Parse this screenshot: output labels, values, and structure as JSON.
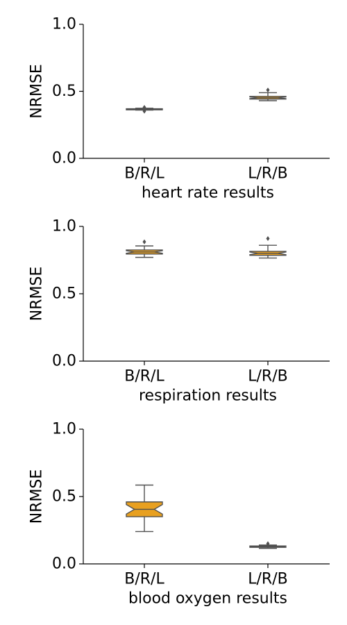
{
  "colors": {
    "box_fill": "#e8a020",
    "box_edge": "#505050",
    "axis": "#000000",
    "background": "#ffffff"
  },
  "chart_data": [
    {
      "type": "box",
      "xlabel": "heart rate results",
      "ylabel": "NRMSE",
      "ylim": [
        0,
        1.0
      ],
      "yticks": [
        "0.0",
        "0.5",
        "1.0"
      ],
      "categories": [
        "B/R/L",
        "L/R/B"
      ],
      "notched": true,
      "grid": false,
      "boxes": [
        {
          "category": "B/R/L",
          "whisker_low": 0.36,
          "q1": 0.362,
          "median": 0.366,
          "q3": 0.37,
          "whisker_high": 0.374,
          "outliers": [
            0.352,
            0.38
          ]
        },
        {
          "category": "L/R/B",
          "whisker_low": 0.43,
          "q1": 0.442,
          "median": 0.452,
          "q3": 0.462,
          "whisker_high": 0.49,
          "outliers": [
            0.51
          ]
        }
      ]
    },
    {
      "type": "box",
      "xlabel": "respiration results",
      "ylabel": "NRMSE",
      "ylim": [
        0,
        1.0
      ],
      "yticks": [
        "0.0",
        "0.5",
        "1.0"
      ],
      "categories": [
        "B/R/L",
        "L/R/B"
      ],
      "notched": true,
      "grid": false,
      "boxes": [
        {
          "category": "B/R/L",
          "whisker_low": 0.77,
          "q1": 0.795,
          "median": 0.81,
          "q3": 0.825,
          "whisker_high": 0.855,
          "outliers": [
            0.885
          ]
        },
        {
          "category": "L/R/B",
          "whisker_low": 0.765,
          "q1": 0.785,
          "median": 0.8,
          "q3": 0.815,
          "whisker_high": 0.86,
          "outliers": [
            0.91
          ]
        }
      ]
    },
    {
      "type": "box",
      "xlabel": "blood oxygen results",
      "ylabel": "NRMSE",
      "ylim": [
        0,
        1.0
      ],
      "yticks": [
        "0.0",
        "0.5",
        "1.0"
      ],
      "categories": [
        "B/R/L",
        "L/R/B"
      ],
      "notched": true,
      "grid": false,
      "boxes": [
        {
          "category": "B/R/L",
          "whisker_low": 0.24,
          "q1": 0.35,
          "median": 0.405,
          "q3": 0.46,
          "whisker_high": 0.585,
          "outliers": []
        },
        {
          "category": "L/R/B",
          "whisker_low": 0.115,
          "q1": 0.123,
          "median": 0.128,
          "q3": 0.133,
          "whisker_high": 0.14,
          "outliers": [
            0.15
          ]
        }
      ]
    }
  ]
}
